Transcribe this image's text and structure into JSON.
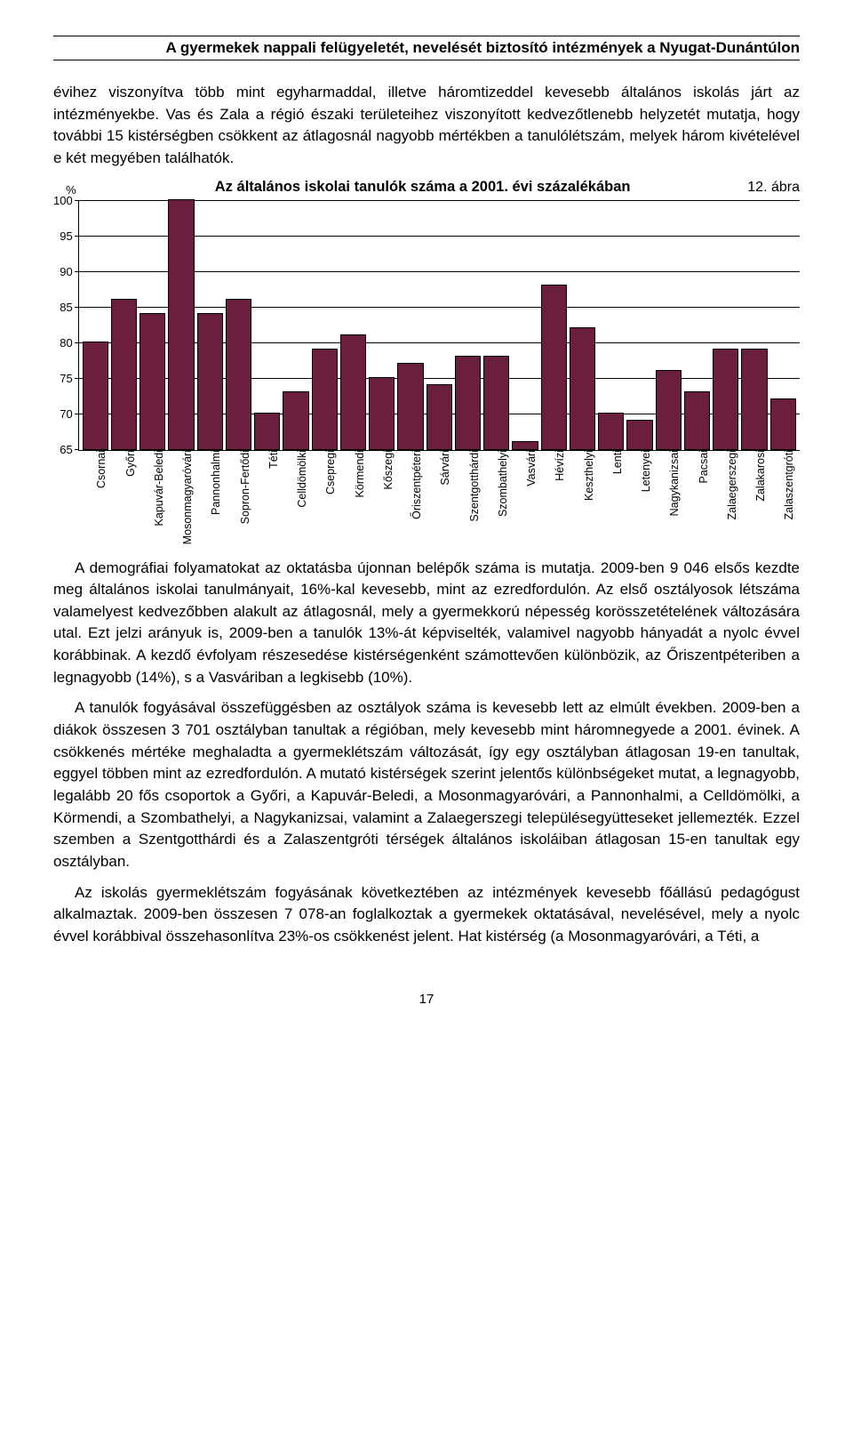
{
  "header": {
    "title": "A gyermekek nappali felügyeletét, nevelését biztosító intézmények a Nyugat-Dunántúlon"
  },
  "para1": "évihez viszonyítva több mint egyharmaddal, illetve háromtizeddel kevesebb általános iskolás járt az intézményekbe. Vas és Zala a régió északi területeihez viszonyított kedvezőtlenebb helyzetét mutatja, hogy további 15 kistérségben csökkent az átlagosnál nagyobb mértékben a tanulólétszám, melyek három kivételével e két megyében találhatók.",
  "figure_label": "12. ábra",
  "chart": {
    "caption": "Az általános iskolai tanulók száma a 2001. évi százalékában",
    "ylabel": "%",
    "ymin": 65,
    "ymax": 100,
    "yticks": [
      65,
      70,
      75,
      80,
      85,
      90,
      95,
      100
    ],
    "bar_color": "#6b1f3e",
    "categories": [
      "Csornai",
      "Győri",
      "Kapuvár-Beledi",
      "Mosonmagyaróvári",
      "Pannonhalmi",
      "Sopron-Fertődi",
      "Téti",
      "Celldömölki",
      "Csepregi",
      "Körmendi",
      "Kőszegi",
      "Őriszentpéteri",
      "Sárvári",
      "Szentgotthárdi",
      "Szombathelyi",
      "Vasvári",
      "Hévízi",
      "Keszthelyi",
      "Lenti",
      "Letenyei",
      "Nagykanizsai",
      "Pacsai",
      "Zalaegerszegi",
      "Zalakarosi",
      "Zalaszentgróti"
    ],
    "values": [
      80,
      86,
      84,
      100,
      84,
      86,
      70,
      73,
      79,
      81,
      75,
      77,
      74,
      78,
      78,
      66,
      88,
      82,
      70,
      69,
      76,
      73,
      79,
      79,
      72
    ]
  },
  "para2": "A demográfiai folyamatokat az oktatásba újonnan belépők száma is mutatja. 2009-ben 9 046 elsős kezdte meg általános iskolai tanulmányait, 16%-kal kevesebb, mint az ezredfordulón. Az első osztályosok létszáma valamelyest kedvezőbben alakult az átlagosnál, mely a gyermekkorú népesség korösszetételének változására utal. Ezt jelzi arányuk is, 2009-ben a tanulók 13%-át képviselték, valamivel nagyobb hányadát a nyolc évvel korábbinak. A kezdő évfolyam részesedése kistérségenként számottevően különbözik, az Őriszentpéteriben a legnagyobb (14%), s a Vasváriban a legkisebb (10%).",
  "para3": "A tanulók fogyásával összefüggésben az osztályok száma is kevesebb lett az elmúlt években. 2009-ben a diákok összesen 3 701 osztályban tanultak a régióban, mely kevesebb mint háromnegyede a 2001. évinek. A csökkenés mértéke meghaladta a gyermeklétszám változását, így egy osztályban átlagosan 19-en tanultak, eggyel többen mint az ezredfordulón. A mutató kistérségek szerint jelentős különbségeket mutat, a legnagyobb, legalább 20 fős csoportok a Győri, a Kapuvár-Beledi, a Mosonmagyaróvári, a Pannonhalmi, a Celldömölki, a Körmendi, a Szombathelyi, a Nagykanizsai, valamint a Zalaegerszegi településegyütteseket jellemezték. Ezzel szemben a Szentgotthárdi és a Zalaszentgróti térségek általános iskoláiban átlagosan 15-en tanultak egy osztályban.",
  "para4": "Az iskolás gyermeklétszám fogyásának következtében az intézmények kevesebb főállású pedagógust alkalmaztak. 2009-ben összesen 7 078-an foglalkoztak a gyermekek oktatásával, nevelésével, mely a nyolc évvel korábbival összehasonlítva 23%-os csökkenést jelent. Hat kistérség (a Mosonmagyaróvári, a Téti, a",
  "page_number": "17"
}
